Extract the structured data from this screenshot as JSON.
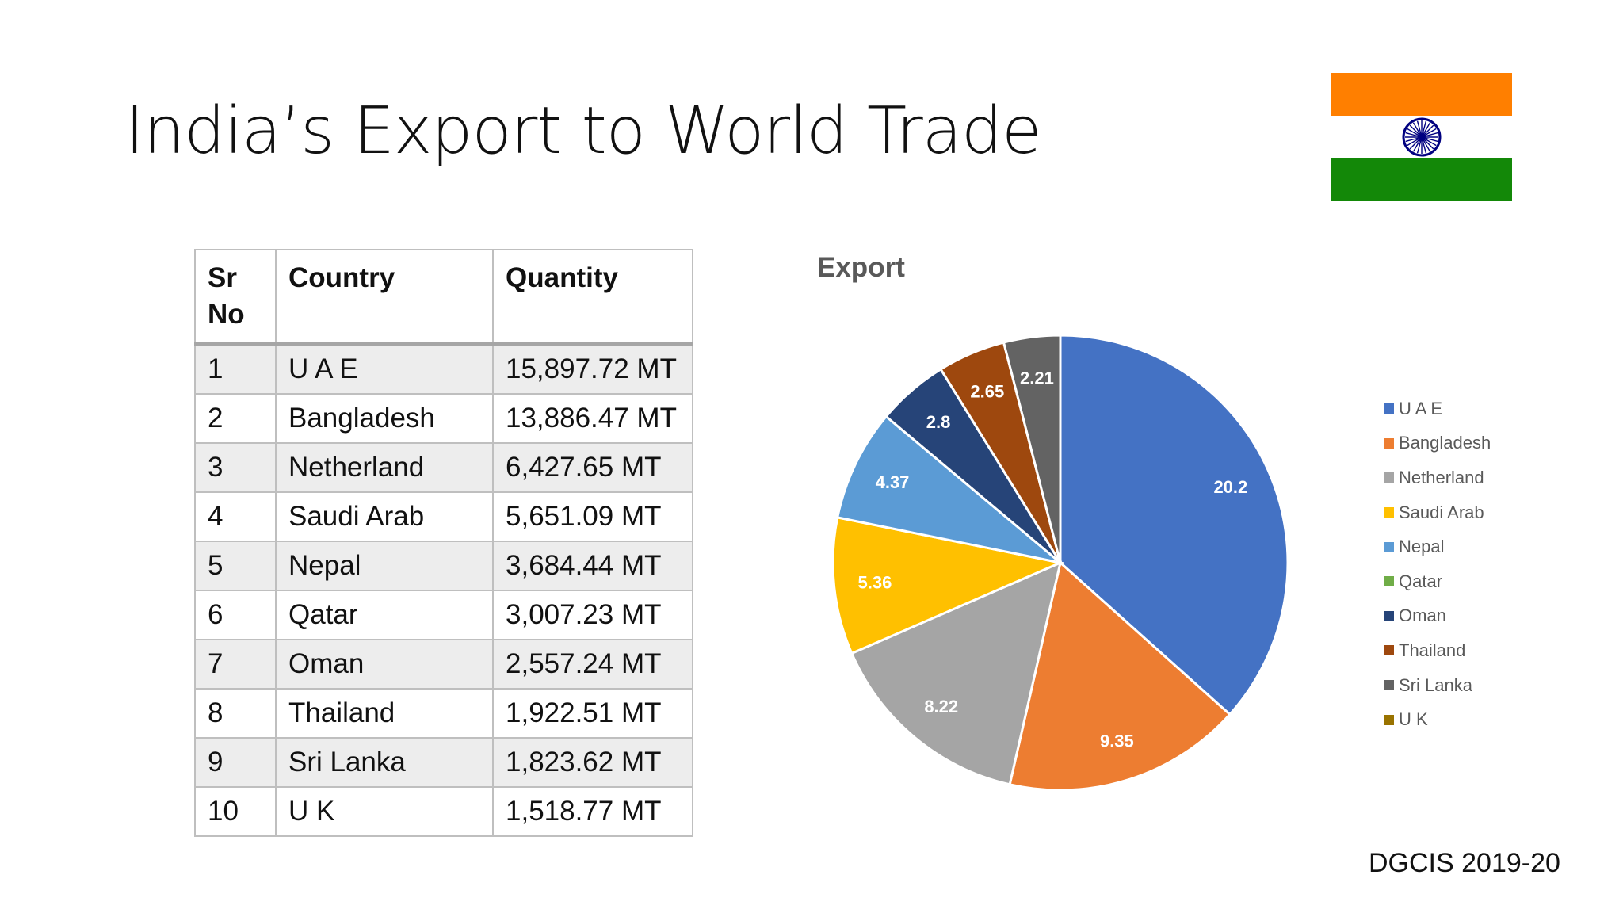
{
  "slide": {
    "title": "India’s Export to World Trade",
    "source": "DGCIS 2019-20"
  },
  "flag": {
    "icon": "india-flag-icon",
    "colors": {
      "saffron": "#FF7F00",
      "white": "#FFFFFF",
      "green": "#138808",
      "chakra": "#000080"
    }
  },
  "table": {
    "headers": {
      "sr": "Sr No",
      "country": "Country",
      "quantity": "Quantity"
    },
    "rows": [
      {
        "sr": "1",
        "country": "U A E",
        "quantity": "15,897.72 MT"
      },
      {
        "sr": "2",
        "country": "Bangladesh",
        "quantity": "13,886.47 MT"
      },
      {
        "sr": "3",
        "country": "Netherland",
        "quantity": "6,427.65 MT"
      },
      {
        "sr": "4",
        "country": "Saudi Arab",
        "quantity": "5,651.09 MT"
      },
      {
        "sr": "5",
        "country": "Nepal",
        "quantity": "3,684.44 MT"
      },
      {
        "sr": "6",
        "country": "Qatar",
        "quantity": "3,007.23 MT"
      },
      {
        "sr": "7",
        "country": "Oman",
        "quantity": "2,557.24 MT"
      },
      {
        "sr": "8",
        "country": "Thailand",
        "quantity": "1,922.51 MT"
      },
      {
        "sr": "9",
        "country": "Sri Lanka",
        "quantity": "1,823.62 MT"
      },
      {
        "sr": "10",
        "country": "U K",
        "quantity": "1,518.77 MT"
      }
    ]
  },
  "chart_data": {
    "type": "pie",
    "title": "Export",
    "legend_position": "right",
    "categories": [
      "U A E",
      "Bangladesh",
      "Netherland",
      "Saudi Arab",
      "Nepal",
      "Qatar",
      "Oman",
      "Thailand",
      "Sri Lanka",
      "U K"
    ],
    "values": [
      20.2,
      9.35,
      8.22,
      5.36,
      4.37,
      0,
      2.8,
      2.65,
      2.21,
      0
    ],
    "labels": [
      "20.2",
      "9.35",
      "8.22",
      "5.36",
      "4.37",
      "",
      "2.8",
      "2.65",
      "2.21",
      ""
    ],
    "colors": [
      "#4472C4",
      "#ED7D31",
      "#A5A5A5",
      "#FFC000",
      "#5B9BD5",
      "#70AD47",
      "#264478",
      "#9E480E",
      "#636363",
      "#997300"
    ]
  }
}
